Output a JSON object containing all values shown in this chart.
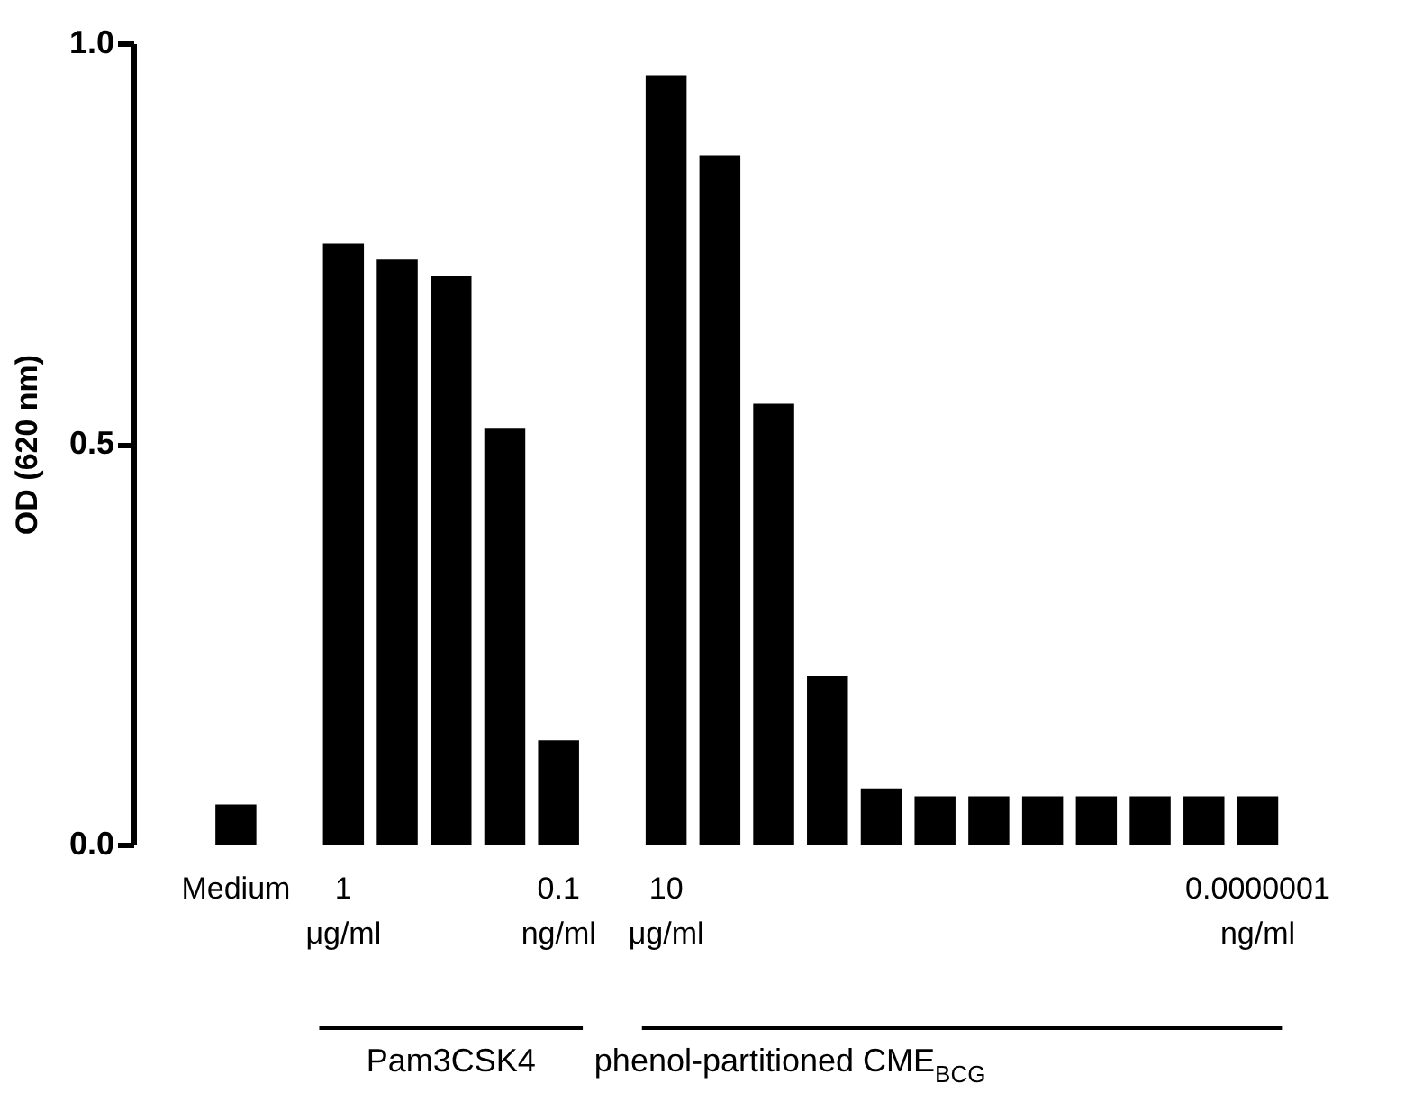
{
  "chart_data": {
    "type": "bar",
    "ylabel": "OD (620 nm)",
    "color": "#000000",
    "categories": [
      "Medium",
      null,
      "1\nμg/ml",
      null,
      null,
      null,
      "0.1\nng/ml",
      null,
      "10\nμg/ml",
      null,
      null,
      null,
      null,
      null,
      null,
      null,
      null,
      null,
      null,
      "0.0000001\nng/ml"
    ],
    "values": [
      0.05,
      null,
      0.75,
      0.73,
      0.71,
      0.52,
      0.13,
      null,
      0.96,
      0.86,
      0.55,
      0.21,
      0.07,
      0.06,
      0.06,
      0.06,
      0.06,
      0.06,
      0.06,
      0.06
    ],
    "ylim": [
      0,
      1
    ],
    "yticks": [
      {
        "value": 0,
        "label": "0.0"
      },
      {
        "value": 0.5,
        "label": "0.5"
      },
      {
        "value": 1,
        "label": "1.0"
      }
    ],
    "annotations": [
      "Pam3CSK4",
      "phenol-partitioned CME$_{BCG}$"
    ],
    "grid": false
  }
}
